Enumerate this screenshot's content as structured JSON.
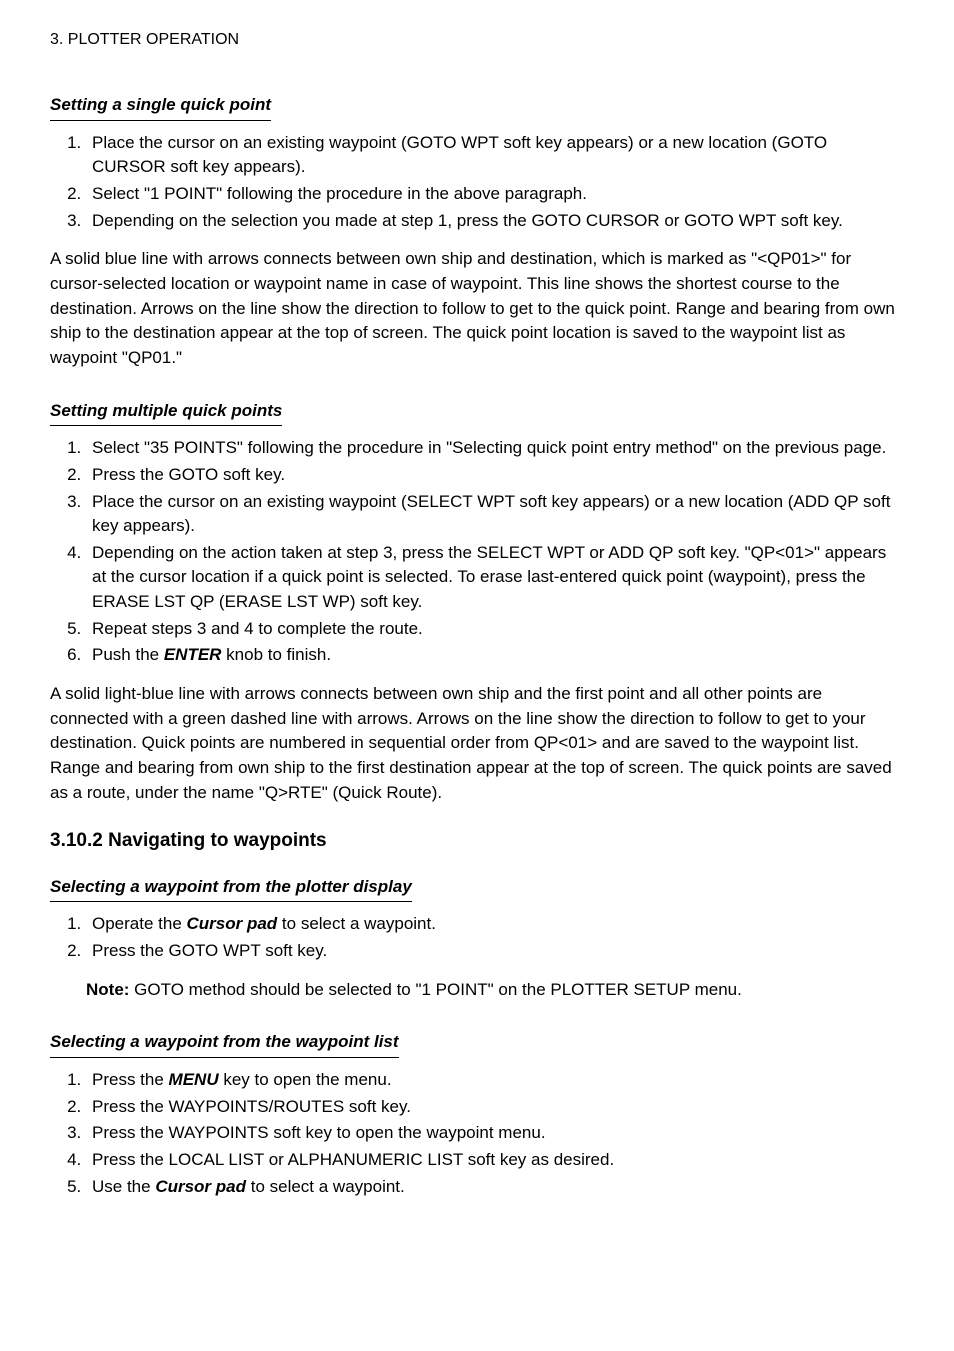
{
  "header": "3. PLOTTER OPERATION",
  "sections": {
    "single_qp": {
      "title": "Setting a single quick point",
      "items": [
        "Place the cursor on an existing waypoint (GOTO WPT soft key appears) or a new location (GOTO CURSOR soft key appears).",
        "Select \"1 POINT\" following the procedure in the above paragraph.",
        "Depending on the selection you made at step 1, press the GOTO CURSOR or GOTO WPT soft key."
      ],
      "paragraph": "A solid blue line with arrows connects between own ship and destination, which is marked as \"<QP01>\" for cursor-selected location or waypoint name in case of waypoint. This line shows the shortest course to the destination. Arrows on the line show the direction to follow to get to the quick point. Range and bearing from own ship to the destination appear at the top of screen. The quick point location is saved to the waypoint list as waypoint \"QP01.\""
    },
    "multi_qp": {
      "title": "Setting multiple quick points",
      "items": [
        "Select \"35 POINTS\" following the procedure in \"Selecting quick point entry method\" on the previous page.",
        "Press the GOTO soft key.",
        "Place the cursor on an existing waypoint (SELECT WPT soft key appears) or a new location (ADD QP soft key appears).",
        "Depending on the action taken at step 3, press the SELECT WPT or ADD QP soft key. \"QP<01>\" appears at the cursor location if a quick point is selected. To erase last-entered quick point (waypoint), press the ERASE LST QP (ERASE LST WP) soft key.",
        "Repeat steps 3 and 4 to complete the route."
      ],
      "item6_a": "Push the ",
      "item6_knob": "ENTER",
      "item6_b": " knob to finish.",
      "paragraph": "A solid light-blue line with arrows connects between own ship and the first point and all other points are connected with a green dashed line with arrows. Arrows on the line show the direction to follow to get to your destination. Quick points are numbered in sequential order from QP<01> and are saved to the waypoint list. Range and bearing from own ship to the first destination appear at the top of screen. The quick points are saved as a route, under the name \"Q>RTE\" (Quick Route)."
    },
    "nav_wpt": {
      "subsection": "3.10.2 Navigating to waypoints",
      "cursor": {
        "title": "Selecting a waypoint from the plotter display",
        "item1_a": "Operate the ",
        "item1_m": "Cursor pad",
        "item1_b": " to select a waypoint.",
        "item2": "Press the GOTO WPT soft key.",
        "note_label": "Note:",
        "note_text": " GOTO method should be selected to \"1 POINT\" on the PLOTTER SETUP menu."
      },
      "list": {
        "title": "Selecting a waypoint from the waypoint list",
        "item1_a": "Press the ",
        "item1_m": "MENU",
        "item1_b": " key to open the menu.",
        "item2": "Press the WAYPOINTS/ROUTES soft key.",
        "item3": "Press the WAYPOINTS soft key to open the waypoint menu.",
        "item4": "Press the LOCAL LIST or ALPHANUMERIC LIST soft key as desired.",
        "item5_a": "Use the ",
        "item5_m": "Cursor pad",
        "item5_b": " to select a waypoint."
      }
    }
  }
}
